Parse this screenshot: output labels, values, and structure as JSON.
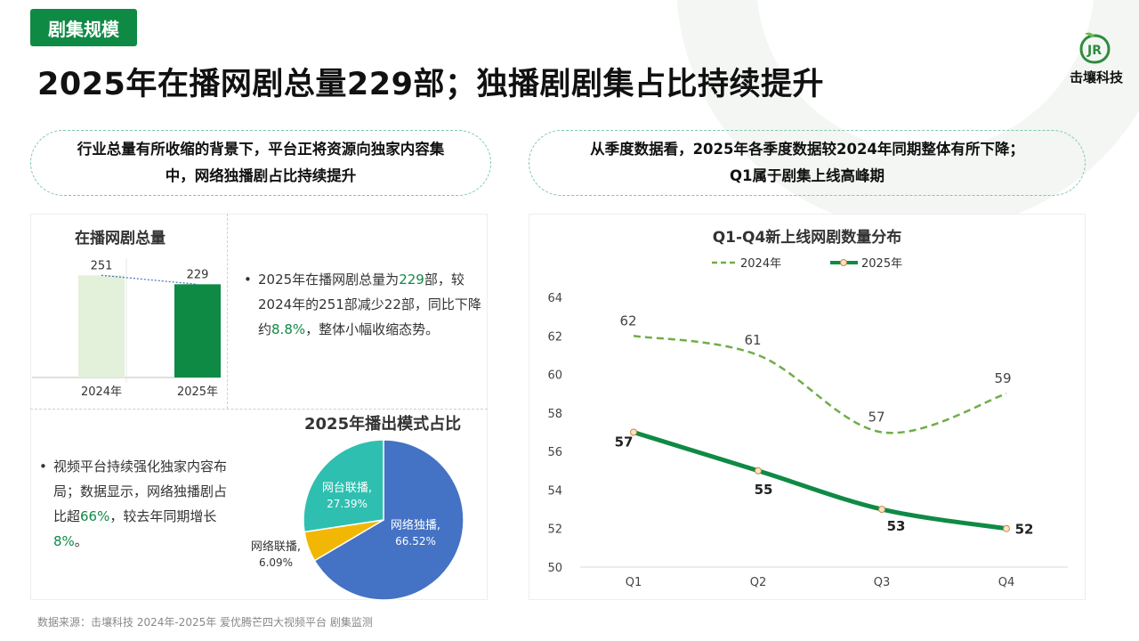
{
  "section_tag": "剧集规模",
  "title": "2025年在播网剧总量229部；独播剧剧集占比持续提升",
  "logo": {
    "text": "击壤科技",
    "mark": "JR"
  },
  "pill_left": {
    "line1": "行业总量有所收缩的背景下，平台正将资源向独家内容集",
    "line2": "中，网络独播剧占比持续提升"
  },
  "pill_right": {
    "line1": "从季度数据看，2025年各季度数据较2024年同期整体有所下降；",
    "line2": "Q1属于剧集上线高峰期"
  },
  "bullet1": {
    "p1": "2025年在播网剧总量为",
    "v1": "229",
    "p2": "部，较2024年的251部减少22部，同比下降约",
    "v2": "8.8%",
    "p3": "，整体小幅收缩态势。"
  },
  "bullet2": {
    "p1": "视频平台持续强化独家内容布局；数据显示，网络独播剧占比超",
    "v1": "66%",
    "p2": "，较去年同期增长",
    "v2": "8%",
    "p3": "。"
  },
  "source": "数据来源：击壤科技 2024年-2025年 爱优腾芒四大视频平台 剧集监测",
  "colors": {
    "brand_green": "#0f8a45",
    "light_green": "#e3f0da",
    "dashed_green": "#70ad47",
    "blue": "#4472c4",
    "teal": "#2fbfb0",
    "yellow": "#f2b705"
  },
  "chart_data": [
    {
      "type": "bar",
      "title": "在播网剧总量",
      "categories": [
        "2024年",
        "2025年"
      ],
      "values": [
        251,
        229
      ],
      "labels": [
        "251",
        "229"
      ],
      "colors": [
        "#e3f0da",
        "#0f8a45"
      ],
      "ylim": [
        0,
        280
      ]
    },
    {
      "type": "pie",
      "title": "2025年播出模式占比",
      "slices": [
        {
          "name": "网络独播,",
          "value": 66.52,
          "label": "66.52%",
          "color": "#4472c4"
        },
        {
          "name": "网络联播,",
          "value": 6.09,
          "label": "6.09%",
          "color": "#f2b705"
        },
        {
          "name": "网台联播,",
          "value": 27.39,
          "label": "27.39%",
          "color": "#2fbfb0"
        }
      ]
    },
    {
      "type": "line",
      "title": "Q1-Q4新上线网剧数量分布",
      "categories": [
        "Q1",
        "Q2",
        "Q3",
        "Q4"
      ],
      "ylim": [
        50,
        64
      ],
      "yticks": [
        "50",
        "52",
        "54",
        "56",
        "58",
        "60",
        "62",
        "64"
      ],
      "legend_position": "top",
      "series": [
        {
          "name": "2024年",
          "values": [
            62,
            61,
            57,
            59
          ],
          "labels": [
            "62",
            "61",
            "57",
            "59"
          ],
          "style": "dashed",
          "color": "#70ad47"
        },
        {
          "name": "2025年",
          "values": [
            57,
            55,
            53,
            52
          ],
          "labels": [
            "57",
            "55",
            "53",
            "52"
          ],
          "style": "solid",
          "color": "#0f8a45"
        }
      ]
    }
  ]
}
